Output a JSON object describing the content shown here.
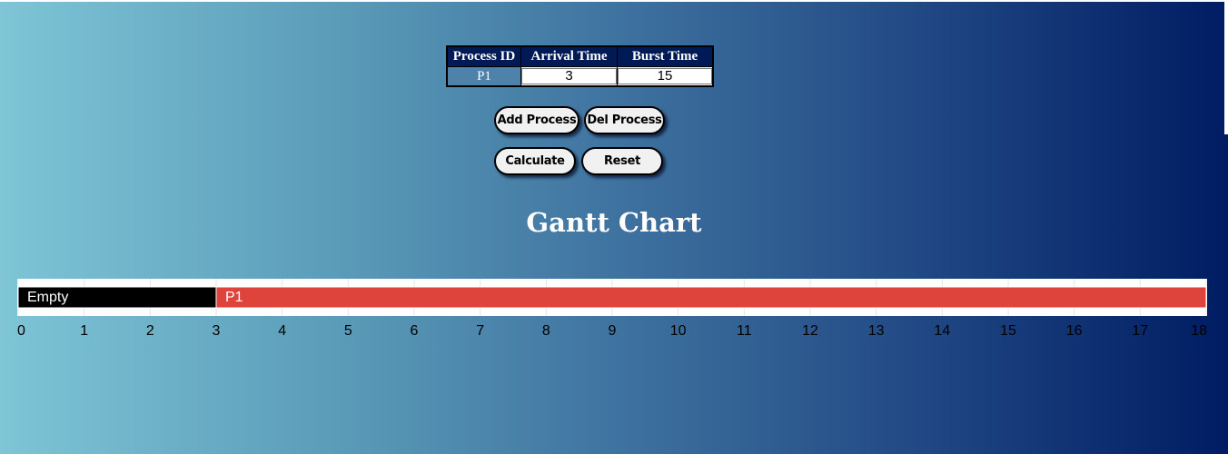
{
  "table": {
    "headers": [
      "Process ID",
      "Arrival Time",
      "Burst Time"
    ],
    "rows": [
      {
        "process_id": "P1",
        "arrival_time": "3",
        "burst_time": "15"
      }
    ]
  },
  "buttons": {
    "add_process": "Add Process",
    "del_process": "Del Process",
    "calculate": "Calculate",
    "reset": "Reset"
  },
  "gantt": {
    "title": "Gantt Chart",
    "axis_min": 0,
    "axis_max": 18,
    "ticks": [
      "0",
      "1",
      "2",
      "3",
      "4",
      "5",
      "6",
      "7",
      "8",
      "9",
      "10",
      "11",
      "12",
      "13",
      "14",
      "15",
      "16",
      "17",
      "18"
    ],
    "segments": [
      {
        "label": "Empty",
        "start": 0,
        "end": 3,
        "color": "#000000"
      },
      {
        "label": "P1",
        "start": 3,
        "end": 18,
        "color": "#de443b"
      }
    ]
  }
}
